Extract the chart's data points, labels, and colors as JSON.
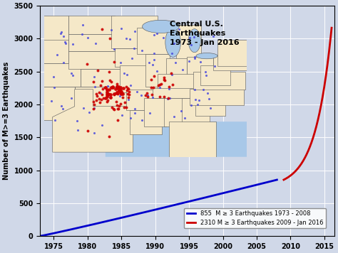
{
  "title": "Central U.S.\nEarthquakes\n1973 - Jan 2016",
  "ylabel": "Number of M>=3 Earthquakes",
  "xlim": [
    1973,
    2016.5
  ],
  "ylim": [
    0,
    3500
  ],
  "yticks": [
    0,
    500,
    1000,
    1500,
    2000,
    2500,
    3000,
    3500
  ],
  "xticks": [
    1975,
    1980,
    1985,
    1990,
    1995,
    2000,
    2005,
    2010,
    2015
  ],
  "blue_start_year": 1973,
  "blue_end_year": 2008,
  "blue_total": 855,
  "red_start_year": 2009,
  "red_end_year": 2016.083,
  "red_total": 2310,
  "blue_color": "#0000cc",
  "red_color": "#cc0000",
  "bg_color": "#d0d8e8",
  "legend_blue": "855  M ≥ 3 Earthquakes 1973 - 2008",
  "legend_red": "2310 M ≥ 3 Earthquakes 2009 - Jan 2016",
  "grid_color": "#ffffff",
  "map_bg": "#f5e8c8",
  "map_water": "#a8c8e8"
}
